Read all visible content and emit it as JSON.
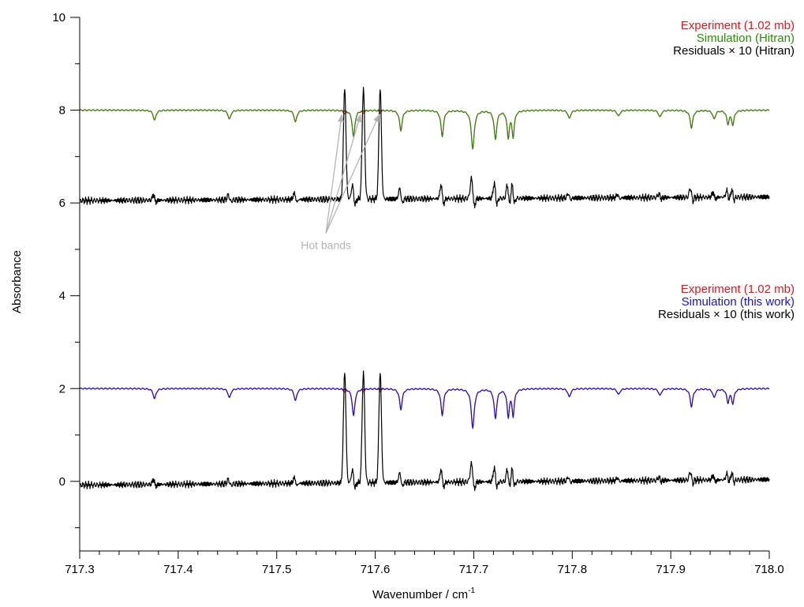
{
  "chart_data": {
    "type": "line",
    "xlabel": "Wavenumber / cm",
    "xlabel_sup": "-1",
    "ylabel": "Absorbance",
    "xlim": [
      717.3,
      718.0
    ],
    "ylim": [
      -1.5,
      10
    ],
    "x_ticks": [
      717.3,
      717.4,
      717.5,
      717.6,
      717.7,
      717.8,
      717.9,
      718.0
    ],
    "x_tick_labels": [
      "717.3",
      "717.4",
      "717.5",
      "717.6",
      "717.7",
      "717.8",
      "717.9",
      "718.0"
    ],
    "y_ticks": [
      0,
      2,
      4,
      6,
      8,
      10
    ],
    "y_tick_labels": [
      "0",
      "2",
      "4",
      "6",
      "8",
      "10"
    ],
    "grid": false,
    "colors": {
      "experiment": "#e8141c",
      "hitran": "#2e8b0e",
      "this_work": "#1a12d6",
      "residuals": "#000000",
      "annotation": "#b3b3b3"
    },
    "lines": [
      {
        "center": 717.376,
        "depth": 0.22,
        "width": 0.0016
      },
      {
        "center": 717.452,
        "depth": 0.2,
        "width": 0.0016
      },
      {
        "center": 717.519,
        "depth": 0.26,
        "width": 0.0016
      },
      {
        "center": 717.578,
        "depth": 0.58,
        "width": 0.0016
      },
      {
        "center": 717.626,
        "depth": 0.44,
        "width": 0.0016
      },
      {
        "center": 717.668,
        "depth": 0.56,
        "width": 0.0016
      },
      {
        "center": 717.699,
        "depth": 0.83,
        "width": 0.0018
      },
      {
        "center": 717.722,
        "depth": 0.62,
        "width": 0.0016
      },
      {
        "center": 717.735,
        "depth": 0.57,
        "width": 0.0014
      },
      {
        "center": 717.74,
        "depth": 0.55,
        "width": 0.0014
      },
      {
        "center": 717.797,
        "depth": 0.18,
        "width": 0.0016
      },
      {
        "center": 717.847,
        "depth": 0.13,
        "width": 0.0016
      },
      {
        "center": 717.889,
        "depth": 0.15,
        "width": 0.0016
      },
      {
        "center": 717.921,
        "depth": 0.38,
        "width": 0.0016
      },
      {
        "center": 717.944,
        "depth": 0.19,
        "width": 0.0016
      },
      {
        "center": 717.958,
        "depth": 0.28,
        "width": 0.0015
      },
      {
        "center": 717.963,
        "depth": 0.3,
        "width": 0.0015
      }
    ],
    "hot_bands": [
      {
        "center": 717.569,
        "depth": 0.06
      },
      {
        "center": 717.588,
        "depth": 0.05
      },
      {
        "center": 717.605,
        "depth": 0.05
      }
    ],
    "series_offsets": {
      "top_spectra": 8.0,
      "top_residuals": 6.05,
      "bottom_spectra": 2.0,
      "bottom_residuals": -0.08
    },
    "panels": [
      {
        "legend": [
          {
            "text": "Experiment (1.02 mb)",
            "color_key": "experiment"
          },
          {
            "text": "Simulation (Hitran)",
            "color_key": "hitran"
          },
          {
            "text": "Residuals × 10 (Hitran)",
            "color_key": "residuals"
          }
        ]
      },
      {
        "legend": [
          {
            "text": "Experiment (1.02 mb)",
            "color_key": "experiment"
          },
          {
            "text": "Simulation (this work)",
            "color_key": "this_work"
          },
          {
            "text": "Residuals × 10 (this work)",
            "color_key": "residuals"
          }
        ]
      }
    ],
    "annotation": {
      "text": "Hot bands",
      "anchor": {
        "x": 717.55,
        "y": 5.35
      },
      "targets": [
        {
          "x": 717.566,
          "y": 7.9
        },
        {
          "x": 717.585,
          "y": 7.9
        },
        {
          "x": 717.604,
          "y": 7.9
        }
      ]
    }
  }
}
